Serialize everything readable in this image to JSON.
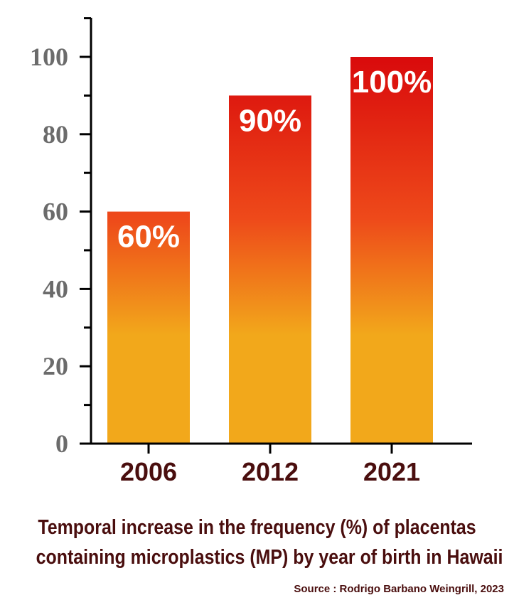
{
  "chart_data": {
    "type": "bar",
    "categories": [
      "2006",
      "2012",
      "2021"
    ],
    "values": [
      60,
      90,
      100
    ],
    "data_labels": [
      "60%",
      "90%",
      "100%"
    ],
    "ylim": [
      0,
      110
    ],
    "yticks": [
      0,
      20,
      40,
      60,
      80,
      100
    ],
    "yminor_step": 10,
    "xlabel": "",
    "ylabel": "",
    "grid": false,
    "title": "Temporal increase in the frequency (%) of placentas containing microplastics (MP) by year of birth in Hawaii"
  },
  "caption": {
    "line1": "Temporal increase in the frequency (%) of placentas",
    "line2": "containing microplastics (MP) by year of birth in Hawaii",
    "source": "Source : Rodrigo Barbano Weingrill, 2023"
  },
  "colors": {
    "bar_top": "#d90a0c",
    "bar_mid": "#ee4a1a",
    "bar_bottom": "#f2a81b",
    "axis": "#000000",
    "ytick_text": "#6b6b6b",
    "xtick_text": "#4a0e0e",
    "caption_text": "#4a0e0e"
  }
}
